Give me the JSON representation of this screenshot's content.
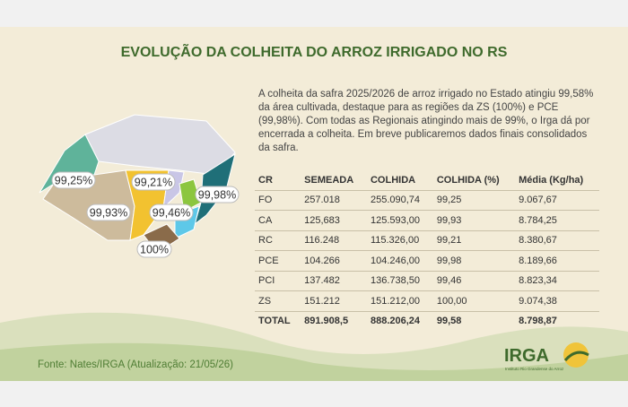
{
  "title": "EVOLUÇÃO DA COLHEITA DO ARROZ IRRIGADO NO RS",
  "intro": "A colheita da safra 2025/2026 de arroz irrigado no Estado atingiu 99,58% da área cultivada, destaque para as regiões da ZS (100%) e PCE (99,98%). Com todas as Regionais atingindo mais de 99%, o Irga dá por encerrada a colheita. Em breve publicaremos dados finais consolidados da safra.",
  "map": {
    "labels": [
      "99,25%",
      "99,21%",
      "99,98%",
      "99,93%",
      "99,46%",
      "100%"
    ]
  },
  "table": {
    "header": [
      "CR",
      "SEMEADA",
      "COLHIDA",
      "COLHIDA (%)",
      "Média (Kg/ha)"
    ],
    "rows": [
      [
        "FO",
        "257.018",
        "255.090,74",
        "99,25",
        "9.067,67"
      ],
      [
        "CA",
        "125,683",
        "125.593,00",
        "99,93",
        "8.784,25"
      ],
      [
        "RC",
        "116.248",
        "115.326,00",
        "99,21",
        "8.380,67"
      ],
      [
        "PCE",
        "104.266",
        "104.246,00",
        "99,98",
        "8.189,66"
      ],
      [
        "PCI",
        "137.482",
        "136.738,50",
        "99,46",
        "8.823,34"
      ],
      [
        "ZS",
        "151.212",
        "151.212,00",
        "100,00",
        "9.074,38"
      ],
      [
        "TOTAL",
        "891.908,5",
        "888.206,24",
        "99,58",
        "8.798,87"
      ]
    ]
  },
  "footer": "Fonte: Nates/IRGA (Atualização: 21/05/26)",
  "logo": {
    "name": "IRGA",
    "subtitle": "Instituto Rio Grandense do Arroz"
  }
}
